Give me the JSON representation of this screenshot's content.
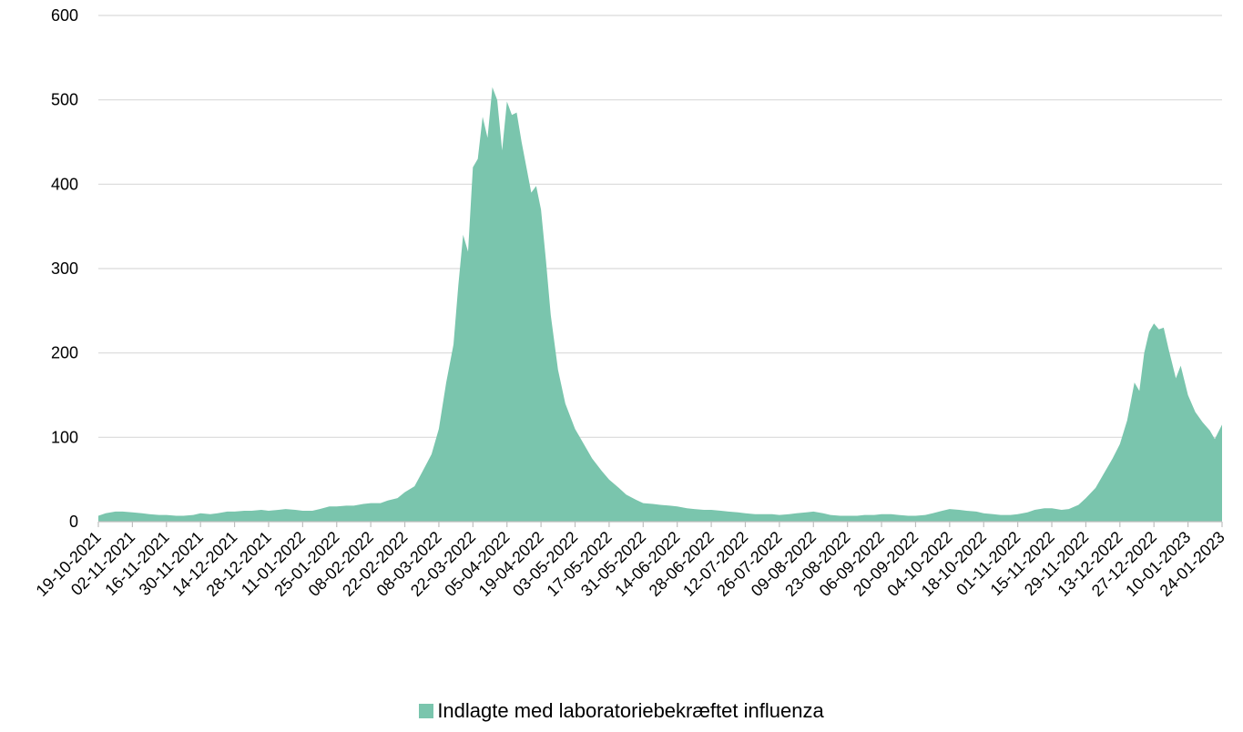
{
  "colors": {
    "area": "#7ac5ad",
    "grid": "#d9d9d9",
    "axis": "#bfbfbf",
    "text": "#000000"
  },
  "chart_data": {
    "type": "area",
    "title": "",
    "xlabel": "",
    "ylabel": "",
    "ylim": [
      0,
      600
    ],
    "yticks": [
      0,
      100,
      200,
      300,
      400,
      500,
      600
    ],
    "grid": true,
    "legend_position": "bottom-center",
    "x_tick_labels": [
      "19-10-2021",
      "02-11-2021",
      "16-11-2021",
      "30-11-2021",
      "14-12-2021",
      "28-12-2021",
      "11-01-2022",
      "25-01-2022",
      "08-02-2022",
      "22-02-2022",
      "08-03-2022",
      "22-03-2022",
      "05-04-2022",
      "19-04-2022",
      "03-05-2022",
      "17-05-2022",
      "31-05-2022",
      "14-06-2022",
      "28-06-2022",
      "12-07-2022",
      "26-07-2022",
      "09-08-2022",
      "23-08-2022",
      "06-09-2022",
      "20-09-2022",
      "04-10-2022",
      "18-10-2022",
      "01-11-2022",
      "15-11-2022",
      "29-11-2022",
      "13-12-2022",
      "27-12-2022",
      "10-01-2023",
      "24-01-2023"
    ],
    "series": [
      {
        "name": "Indlagte med laboratoriebekræftet influenza",
        "points": [
          [
            "19-10-2021",
            7
          ],
          [
            "22-10-2021",
            10
          ],
          [
            "26-10-2021",
            12
          ],
          [
            "29-10-2021",
            12
          ],
          [
            "02-11-2021",
            11
          ],
          [
            "06-11-2021",
            10
          ],
          [
            "09-11-2021",
            9
          ],
          [
            "13-11-2021",
            8
          ],
          [
            "16-11-2021",
            8
          ],
          [
            "20-11-2021",
            7
          ],
          [
            "23-11-2021",
            7
          ],
          [
            "27-11-2021",
            8
          ],
          [
            "30-11-2021",
            10
          ],
          [
            "04-12-2021",
            9
          ],
          [
            "07-12-2021",
            10
          ],
          [
            "11-12-2021",
            12
          ],
          [
            "14-12-2021",
            12
          ],
          [
            "18-12-2021",
            13
          ],
          [
            "21-12-2021",
            13
          ],
          [
            "25-12-2021",
            14
          ],
          [
            "28-12-2021",
            13
          ],
          [
            "01-01-2022",
            14
          ],
          [
            "04-01-2022",
            15
          ],
          [
            "08-01-2022",
            14
          ],
          [
            "11-01-2022",
            13
          ],
          [
            "15-01-2022",
            13
          ],
          [
            "18-01-2022",
            15
          ],
          [
            "22-01-2022",
            18
          ],
          [
            "25-01-2022",
            18
          ],
          [
            "29-01-2022",
            19
          ],
          [
            "01-02-2022",
            19
          ],
          [
            "05-02-2022",
            21
          ],
          [
            "08-02-2022",
            22
          ],
          [
            "12-02-2022",
            22
          ],
          [
            "15-02-2022",
            25
          ],
          [
            "19-02-2022",
            28
          ],
          [
            "22-02-2022",
            35
          ],
          [
            "26-02-2022",
            42
          ],
          [
            "01-03-2022",
            58
          ],
          [
            "05-03-2022",
            80
          ],
          [
            "08-03-2022",
            110
          ],
          [
            "11-03-2022",
            165
          ],
          [
            "14-03-2022",
            210
          ],
          [
            "16-03-2022",
            280
          ],
          [
            "18-03-2022",
            340
          ],
          [
            "20-03-2022",
            320
          ],
          [
            "22-03-2022",
            420
          ],
          [
            "24-03-2022",
            430
          ],
          [
            "26-03-2022",
            480
          ],
          [
            "28-03-2022",
            455
          ],
          [
            "30-03-2022",
            515
          ],
          [
            "01-04-2022",
            500
          ],
          [
            "03-04-2022",
            440
          ],
          [
            "05-04-2022",
            498
          ],
          [
            "07-04-2022",
            482
          ],
          [
            "09-04-2022",
            485
          ],
          [
            "11-04-2022",
            450
          ],
          [
            "13-04-2022",
            420
          ],
          [
            "15-04-2022",
            390
          ],
          [
            "17-04-2022",
            398
          ],
          [
            "19-04-2022",
            370
          ],
          [
            "21-04-2022",
            310
          ],
          [
            "23-04-2022",
            245
          ],
          [
            "26-04-2022",
            180
          ],
          [
            "29-04-2022",
            140
          ],
          [
            "03-05-2022",
            110
          ],
          [
            "07-05-2022",
            90
          ],
          [
            "10-05-2022",
            75
          ],
          [
            "14-05-2022",
            60
          ],
          [
            "17-05-2022",
            50
          ],
          [
            "21-05-2022",
            40
          ],
          [
            "24-05-2022",
            32
          ],
          [
            "28-05-2022",
            26
          ],
          [
            "31-05-2022",
            22
          ],
          [
            "04-06-2022",
            21
          ],
          [
            "07-06-2022",
            20
          ],
          [
            "11-06-2022",
            19
          ],
          [
            "14-06-2022",
            18
          ],
          [
            "18-06-2022",
            16
          ],
          [
            "21-06-2022",
            15
          ],
          [
            "25-06-2022",
            14
          ],
          [
            "28-06-2022",
            14
          ],
          [
            "02-07-2022",
            13
          ],
          [
            "05-07-2022",
            12
          ],
          [
            "09-07-2022",
            11
          ],
          [
            "12-07-2022",
            10
          ],
          [
            "16-07-2022",
            9
          ],
          [
            "19-07-2022",
            9
          ],
          [
            "23-07-2022",
            9
          ],
          [
            "26-07-2022",
            8
          ],
          [
            "30-07-2022",
            9
          ],
          [
            "02-08-2022",
            10
          ],
          [
            "06-08-2022",
            11
          ],
          [
            "09-08-2022",
            12
          ],
          [
            "13-08-2022",
            10
          ],
          [
            "16-08-2022",
            8
          ],
          [
            "20-08-2022",
            7
          ],
          [
            "23-08-2022",
            7
          ],
          [
            "27-08-2022",
            7
          ],
          [
            "30-08-2022",
            8
          ],
          [
            "03-09-2022",
            8
          ],
          [
            "06-09-2022",
            9
          ],
          [
            "10-09-2022",
            9
          ],
          [
            "13-09-2022",
            8
          ],
          [
            "17-09-2022",
            7
          ],
          [
            "20-09-2022",
            7
          ],
          [
            "24-09-2022",
            8
          ],
          [
            "27-09-2022",
            10
          ],
          [
            "01-10-2022",
            13
          ],
          [
            "04-10-2022",
            15
          ],
          [
            "08-10-2022",
            14
          ],
          [
            "11-10-2022",
            13
          ],
          [
            "15-10-2022",
            12
          ],
          [
            "18-10-2022",
            10
          ],
          [
            "22-10-2022",
            9
          ],
          [
            "25-10-2022",
            8
          ],
          [
            "29-10-2022",
            8
          ],
          [
            "01-11-2022",
            9
          ],
          [
            "05-11-2022",
            11
          ],
          [
            "08-11-2022",
            14
          ],
          [
            "12-11-2022",
            16
          ],
          [
            "15-11-2022",
            16
          ],
          [
            "19-11-2022",
            14
          ],
          [
            "22-11-2022",
            15
          ],
          [
            "26-11-2022",
            20
          ],
          [
            "29-11-2022",
            28
          ],
          [
            "03-12-2022",
            40
          ],
          [
            "06-12-2022",
            55
          ],
          [
            "10-12-2022",
            75
          ],
          [
            "13-12-2022",
            92
          ],
          [
            "16-12-2022",
            120
          ],
          [
            "19-12-2022",
            165
          ],
          [
            "21-12-2022",
            155
          ],
          [
            "23-12-2022",
            200
          ],
          [
            "25-12-2022",
            225
          ],
          [
            "27-12-2022",
            235
          ],
          [
            "29-12-2022",
            228
          ],
          [
            "31-12-2022",
            230
          ],
          [
            "02-01-2023",
            205
          ],
          [
            "05-01-2023",
            170
          ],
          [
            "07-01-2023",
            185
          ],
          [
            "10-01-2023",
            150
          ],
          [
            "13-01-2023",
            130
          ],
          [
            "16-01-2023",
            118
          ],
          [
            "19-01-2023",
            108
          ],
          [
            "21-01-2023",
            98
          ],
          [
            "24-01-2023",
            115
          ]
        ]
      }
    ]
  },
  "legend": {
    "label": "Indlagte med laboratoriebekræftet influenza"
  }
}
